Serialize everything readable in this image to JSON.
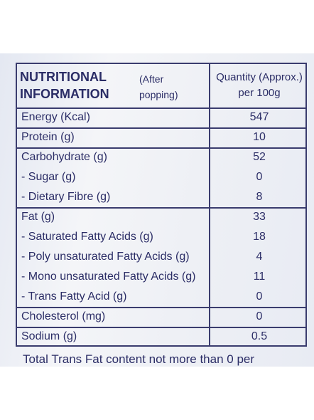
{
  "header": {
    "title_line1": "NUTRITIONAL",
    "title_line2": "INFORMATION",
    "note": "(After popping)",
    "quantity": "Quantity (Approx.) per 100g"
  },
  "table": {
    "groups": [
      {
        "rows": [
          {
            "label": "Energy (Kcal)",
            "value": "547"
          }
        ]
      },
      {
        "rows": [
          {
            "label": "Protein (g)",
            "value": "10"
          }
        ]
      },
      {
        "rows": [
          {
            "label": "Carbohydrate (g)",
            "value": "52"
          },
          {
            "label": "- Sugar (g)",
            "value": "0"
          },
          {
            "label": "- Dietary Fibre (g)",
            "value": "8"
          }
        ]
      },
      {
        "rows": [
          {
            "label": "Fat (g)",
            "value": "33"
          },
          {
            "label": "- Saturated Fatty Acids (g)",
            "value": "18"
          },
          {
            "label": "- Poly unsaturated Fatty Acids (g)",
            "value": "4"
          },
          {
            "label": "- Mono unsaturated Fatty Acids (g)",
            "value": "11"
          },
          {
            "label": "- Trans Fatty Acid (g)",
            "value": "0"
          }
        ]
      },
      {
        "rows": [
          {
            "label": "Cholesterol (mg)",
            "value": "0"
          }
        ]
      },
      {
        "rows": [
          {
            "label": "Sodium (g)",
            "value": "0.5"
          }
        ]
      }
    ]
  },
  "footer": "Total Trans Fat content not more than 0 per"
}
